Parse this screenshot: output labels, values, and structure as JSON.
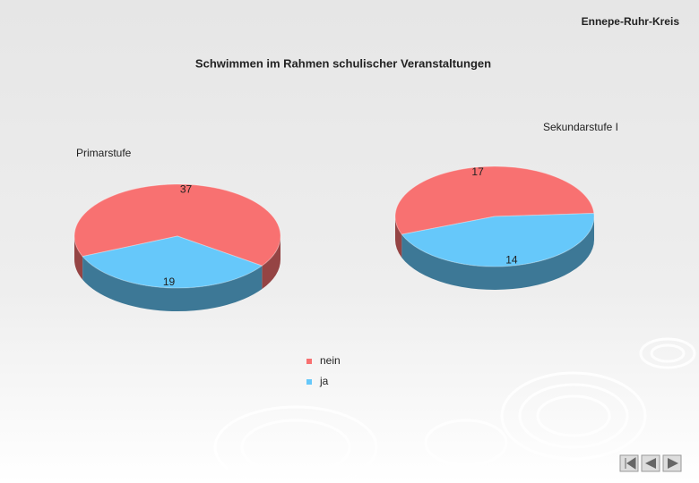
{
  "header": "Ennepe-Ruhr-Kreis",
  "title": "Schwimmen im Rahmen schulischer Veranstaltungen",
  "legend": {
    "categories": [
      "nein",
      "ja"
    ],
    "colors": [
      "#f87171",
      "#66c8fa"
    ]
  },
  "chart_data": [
    {
      "type": "pie",
      "title": "Primarstufe",
      "values": [
        37,
        19
      ]
    },
    {
      "type": "pie",
      "title": "Sekundarstufe I",
      "values": [
        17,
        14
      ]
    }
  ]
}
